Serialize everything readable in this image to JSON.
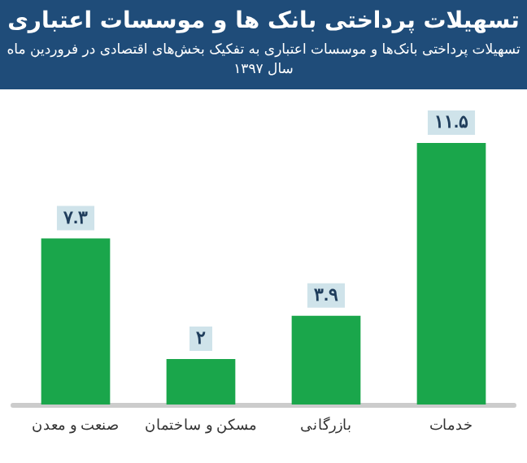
{
  "chart_data": {
    "type": "bar",
    "title": "تسهیلات پرداختی بانک ها و موسسات اعتباری",
    "subtitle": "تسهیلات پرداختی بانک‌ها و موسسات اعتباری به تفکیک بخش‌های اقتصادی در فروردین ماه سال ۱۳۹۷",
    "categories": [
      "صنعت و معدن",
      "مسکن و ساختمان",
      "بازرگانی",
      "خدمات"
    ],
    "values": [
      7.3,
      2,
      3.9,
      11.5
    ],
    "value_labels": [
      "۷.۳",
      "۲",
      "۳.۹",
      "۱۱.۵"
    ],
    "color": "#1aa64b",
    "grid": false,
    "tick_labels": "x"
  }
}
